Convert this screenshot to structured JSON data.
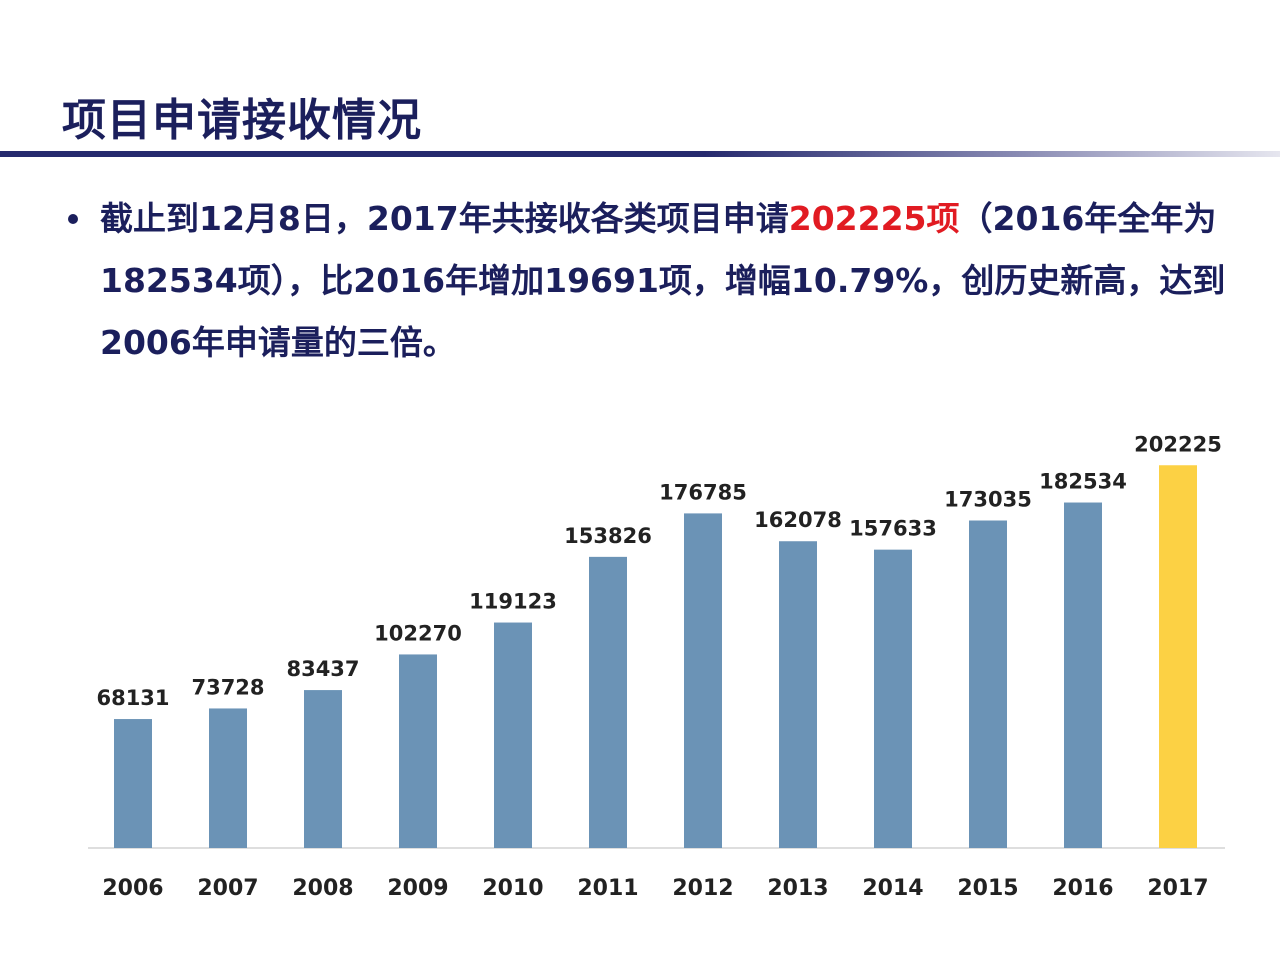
{
  "slide": {
    "title": "项目申请接收情况",
    "bullet": {
      "part1": "截止到12月8日，2017年共接收各类项目申请",
      "highlight": "202225项",
      "part2": "（2016年全年为182534项），比2016年增加19691项，增幅10.79%，创历史新高，达到2006年申请量的三倍。"
    }
  },
  "colors": {
    "title": "#1b1f5c",
    "bar": "#6b93b6",
    "bar_highlight": "#fcd144",
    "highlight_text": "#e11b22"
  },
  "chart_data": {
    "type": "bar",
    "categories": [
      "2006",
      "2007",
      "2008",
      "2009",
      "2010",
      "2011",
      "2012",
      "2013",
      "2014",
      "2015",
      "2016",
      "2017"
    ],
    "values": [
      68131,
      73728,
      83437,
      102270,
      119123,
      153826,
      176785,
      162078,
      157633,
      173035,
      182534,
      202225
    ],
    "value_labels": [
      "68131",
      "73728",
      "83437",
      "102270",
      "119123",
      "153826",
      "176785",
      "162078",
      "157633",
      "173035",
      "182534",
      "202225"
    ],
    "highlight_index": 11,
    "ylim": [
      0,
      205000
    ],
    "grid": false,
    "legend": "none"
  }
}
